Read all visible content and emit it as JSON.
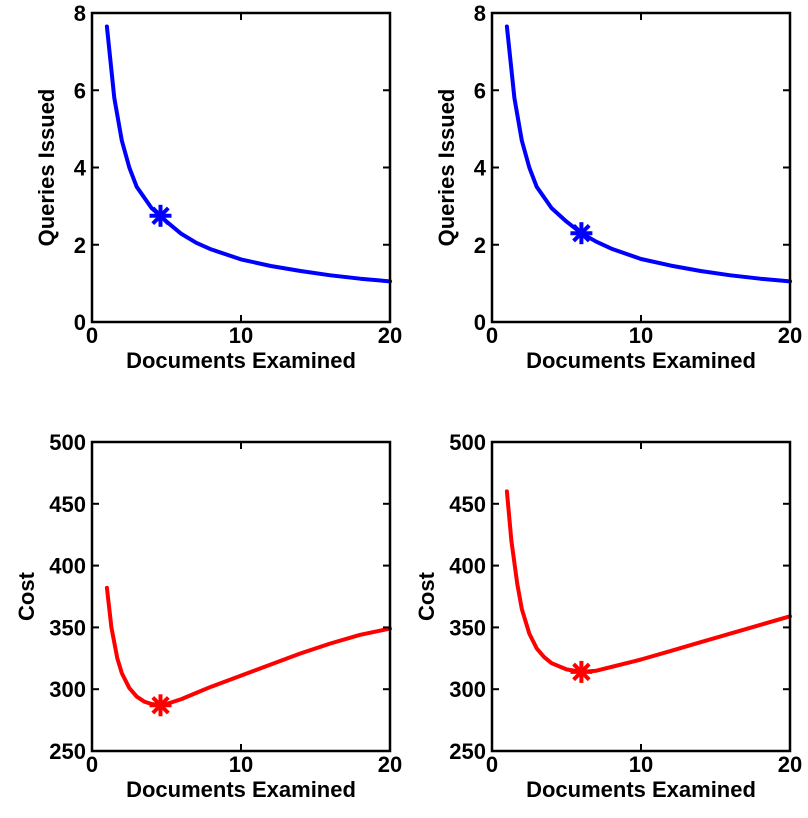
{
  "chart_data": [
    {
      "type": "line",
      "xlabel": "Documents Examined",
      "ylabel": "Queries Issued",
      "xlim": [
        0,
        20
      ],
      "ylim": [
        0,
        8
      ],
      "xticks": [
        0,
        10,
        20
      ],
      "yticks": [
        0,
        2,
        4,
        6,
        8
      ],
      "grid": false,
      "legend": "none",
      "color": "#0000ff",
      "series": [
        {
          "x": [
            1,
            1.5,
            2,
            2.5,
            3,
            4,
            4.6,
            5,
            6,
            7,
            8,
            10,
            12,
            14,
            16,
            18,
            20
          ],
          "y": [
            7.65,
            5.8,
            4.7,
            4.0,
            3.5,
            2.95,
            2.75,
            2.6,
            2.28,
            2.05,
            1.88,
            1.62,
            1.45,
            1.32,
            1.21,
            1.12,
            1.05
          ]
        }
      ],
      "marker": {
        "x": 4.6,
        "y": 2.75,
        "symbol": "asterisk"
      }
    },
    {
      "type": "line",
      "xlabel": "Documents Examined",
      "ylabel": "Queries Issued",
      "xlim": [
        0,
        20
      ],
      "ylim": [
        0,
        8
      ],
      "xticks": [
        0,
        10,
        20
      ],
      "yticks": [
        0,
        2,
        4,
        6,
        8
      ],
      "grid": false,
      "legend": "none",
      "color": "#0000ff",
      "series": [
        {
          "x": [
            1,
            1.5,
            2,
            2.5,
            3,
            4,
            5,
            6,
            7,
            8,
            10,
            12,
            14,
            16,
            18,
            20
          ],
          "y": [
            7.65,
            5.8,
            4.7,
            4.0,
            3.5,
            2.95,
            2.6,
            2.3,
            2.08,
            1.9,
            1.63,
            1.46,
            1.32,
            1.21,
            1.12,
            1.05
          ]
        }
      ],
      "marker": {
        "x": 6.0,
        "y": 2.3,
        "symbol": "asterisk"
      }
    },
    {
      "type": "line",
      "xlabel": "Documents Examined",
      "ylabel": "Cost",
      "xlim": [
        0,
        20
      ],
      "ylim": [
        250,
        500
      ],
      "xticks": [
        0,
        10,
        20
      ],
      "yticks": [
        250,
        300,
        350,
        400,
        450,
        500
      ],
      "grid": false,
      "legend": "none",
      "color": "#ff0000",
      "series": [
        {
          "x": [
            1,
            1.3,
            1.7,
            2,
            2.5,
            3,
            3.5,
            4,
            4.6,
            5,
            6,
            7,
            8,
            10,
            12,
            14,
            16,
            18,
            20
          ],
          "y": [
            382,
            350,
            325,
            313,
            301,
            294,
            290,
            288,
            287,
            288,
            292,
            297,
            302,
            311,
            320,
            329,
            337,
            344,
            349
          ]
        }
      ],
      "marker": {
        "x": 4.6,
        "y": 287,
        "symbol": "asterisk"
      }
    },
    {
      "type": "line",
      "xlabel": "Documents Examined",
      "ylabel": "Cost",
      "xlim": [
        0,
        20
      ],
      "ylim": [
        250,
        500
      ],
      "xticks": [
        0,
        10,
        20
      ],
      "yticks": [
        250,
        300,
        350,
        400,
        450,
        500
      ],
      "grid": false,
      "legend": "none",
      "color": "#ff0000",
      "series": [
        {
          "x": [
            1,
            1.3,
            1.7,
            2,
            2.5,
            3,
            3.5,
            4,
            5,
            6,
            7,
            8,
            10,
            12,
            14,
            16,
            18,
            20
          ],
          "y": [
            460,
            420,
            385,
            365,
            345,
            333,
            326,
            321,
            316,
            314,
            315,
            318,
            324,
            331,
            338,
            345,
            352,
            359
          ]
        }
      ],
      "marker": {
        "x": 6.0,
        "y": 314,
        "symbol": "asterisk"
      }
    }
  ]
}
